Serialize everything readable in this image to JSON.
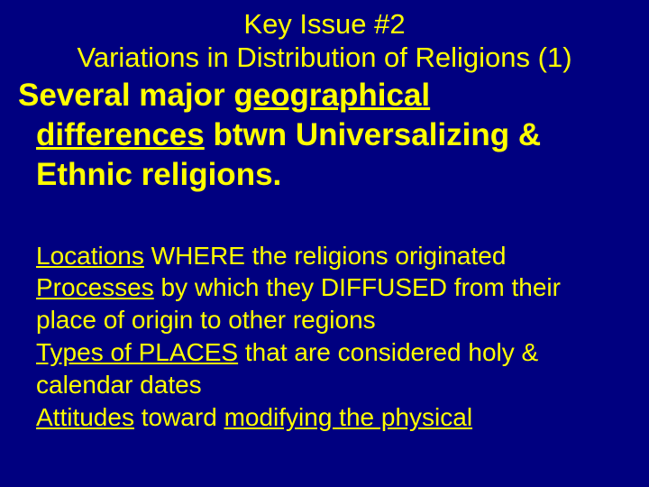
{
  "background_color": "#000080",
  "text_color": "#ffff00",
  "title": {
    "line1": "Key Issue #2",
    "line2": "Variations in Distribution of Religions (1)",
    "fontsize": 31,
    "fontweight": "normal"
  },
  "main_statement": {
    "part1": "Several major ",
    "part2_underlined": "geographical",
    "part3_line2_underlined": "differences",
    "part4_line2": " btwn Universalizing &",
    "part5_line3": "Ethnic religions.",
    "fontsize": 35,
    "fontweight": "bold"
  },
  "list": {
    "fontsize": 28,
    "items": [
      {
        "underlined1": "Locations",
        "text1": " WHERE the religions originated"
      },
      {
        "underlined1": "Processes",
        "text1": " by which they DIFFUSED from their",
        "text2": "place of origin to other regions"
      },
      {
        "underlined1": "Types of PLACES",
        "text1": " that are considered holy &",
        "text2": "calendar dates"
      },
      {
        "underlined1": "Attitudes",
        "text1": " toward ",
        "underlined2": "modifying the physical"
      }
    ]
  }
}
